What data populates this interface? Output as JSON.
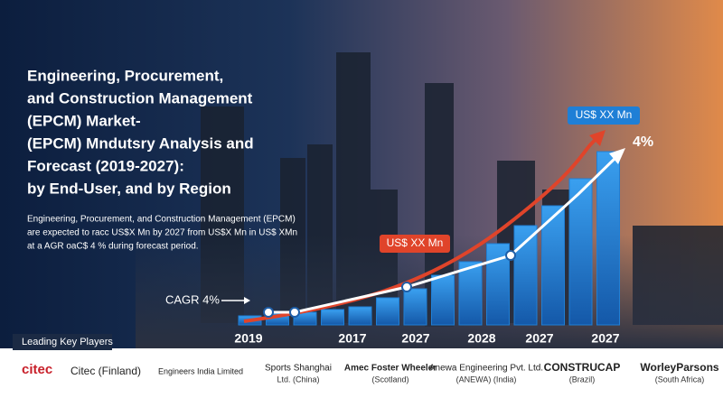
{
  "header": {
    "title_lines": [
      "Engineering, Procurement,",
      "and Construction Management",
      "(EPCM) Market-",
      "(EPCM) Mndutsry Analysis and",
      "Forecast  (2019-2027):",
      "by End-User, and by Region"
    ],
    "body_lines": [
      "Engineering, Procurement, and Construction Management (EPCM)",
      "are expected to racc US$X Mn by 2027 from US$X Mn in US$ XMn",
      "at a AGR oaC$ 4 % during forecast period."
    ]
  },
  "chart": {
    "type": "bar",
    "values": [
      10,
      12,
      14,
      17,
      20,
      30,
      40,
      55,
      70,
      90,
      110,
      132,
      162,
      192
    ],
    "ylim": [
      0,
      200
    ],
    "color": "#1f7fd6",
    "x_labels": [
      "2019",
      "2017",
      "2027",
      "2028",
      "2027",
      "2027"
    ],
    "callout_top": "US$ XX Mn",
    "callout_mid": "US$ XX Mn",
    "growth": "4%",
    "cagr": "CAGR 4%"
  },
  "players": {
    "heading": "Leading Key Players",
    "items": [
      {
        "logo": "citec",
        "name": "Citec (Finland)"
      },
      {
        "name": "Engineers India Limited"
      },
      {
        "name": "Sports Shanghai",
        "sub": "Ltd. (China)"
      },
      {
        "name": "Amec Foster Wheeler",
        "sub": "(Scotland)"
      },
      {
        "name": "Anewa Engineering Pvt. Ltd.",
        "sub": "(ANEWA) (India)"
      },
      {
        "name": "CONSTRUCAP",
        "sub": "(Brazil)"
      },
      {
        "name": "WorleyParsons",
        "sub": "(South Africa)"
      }
    ]
  }
}
